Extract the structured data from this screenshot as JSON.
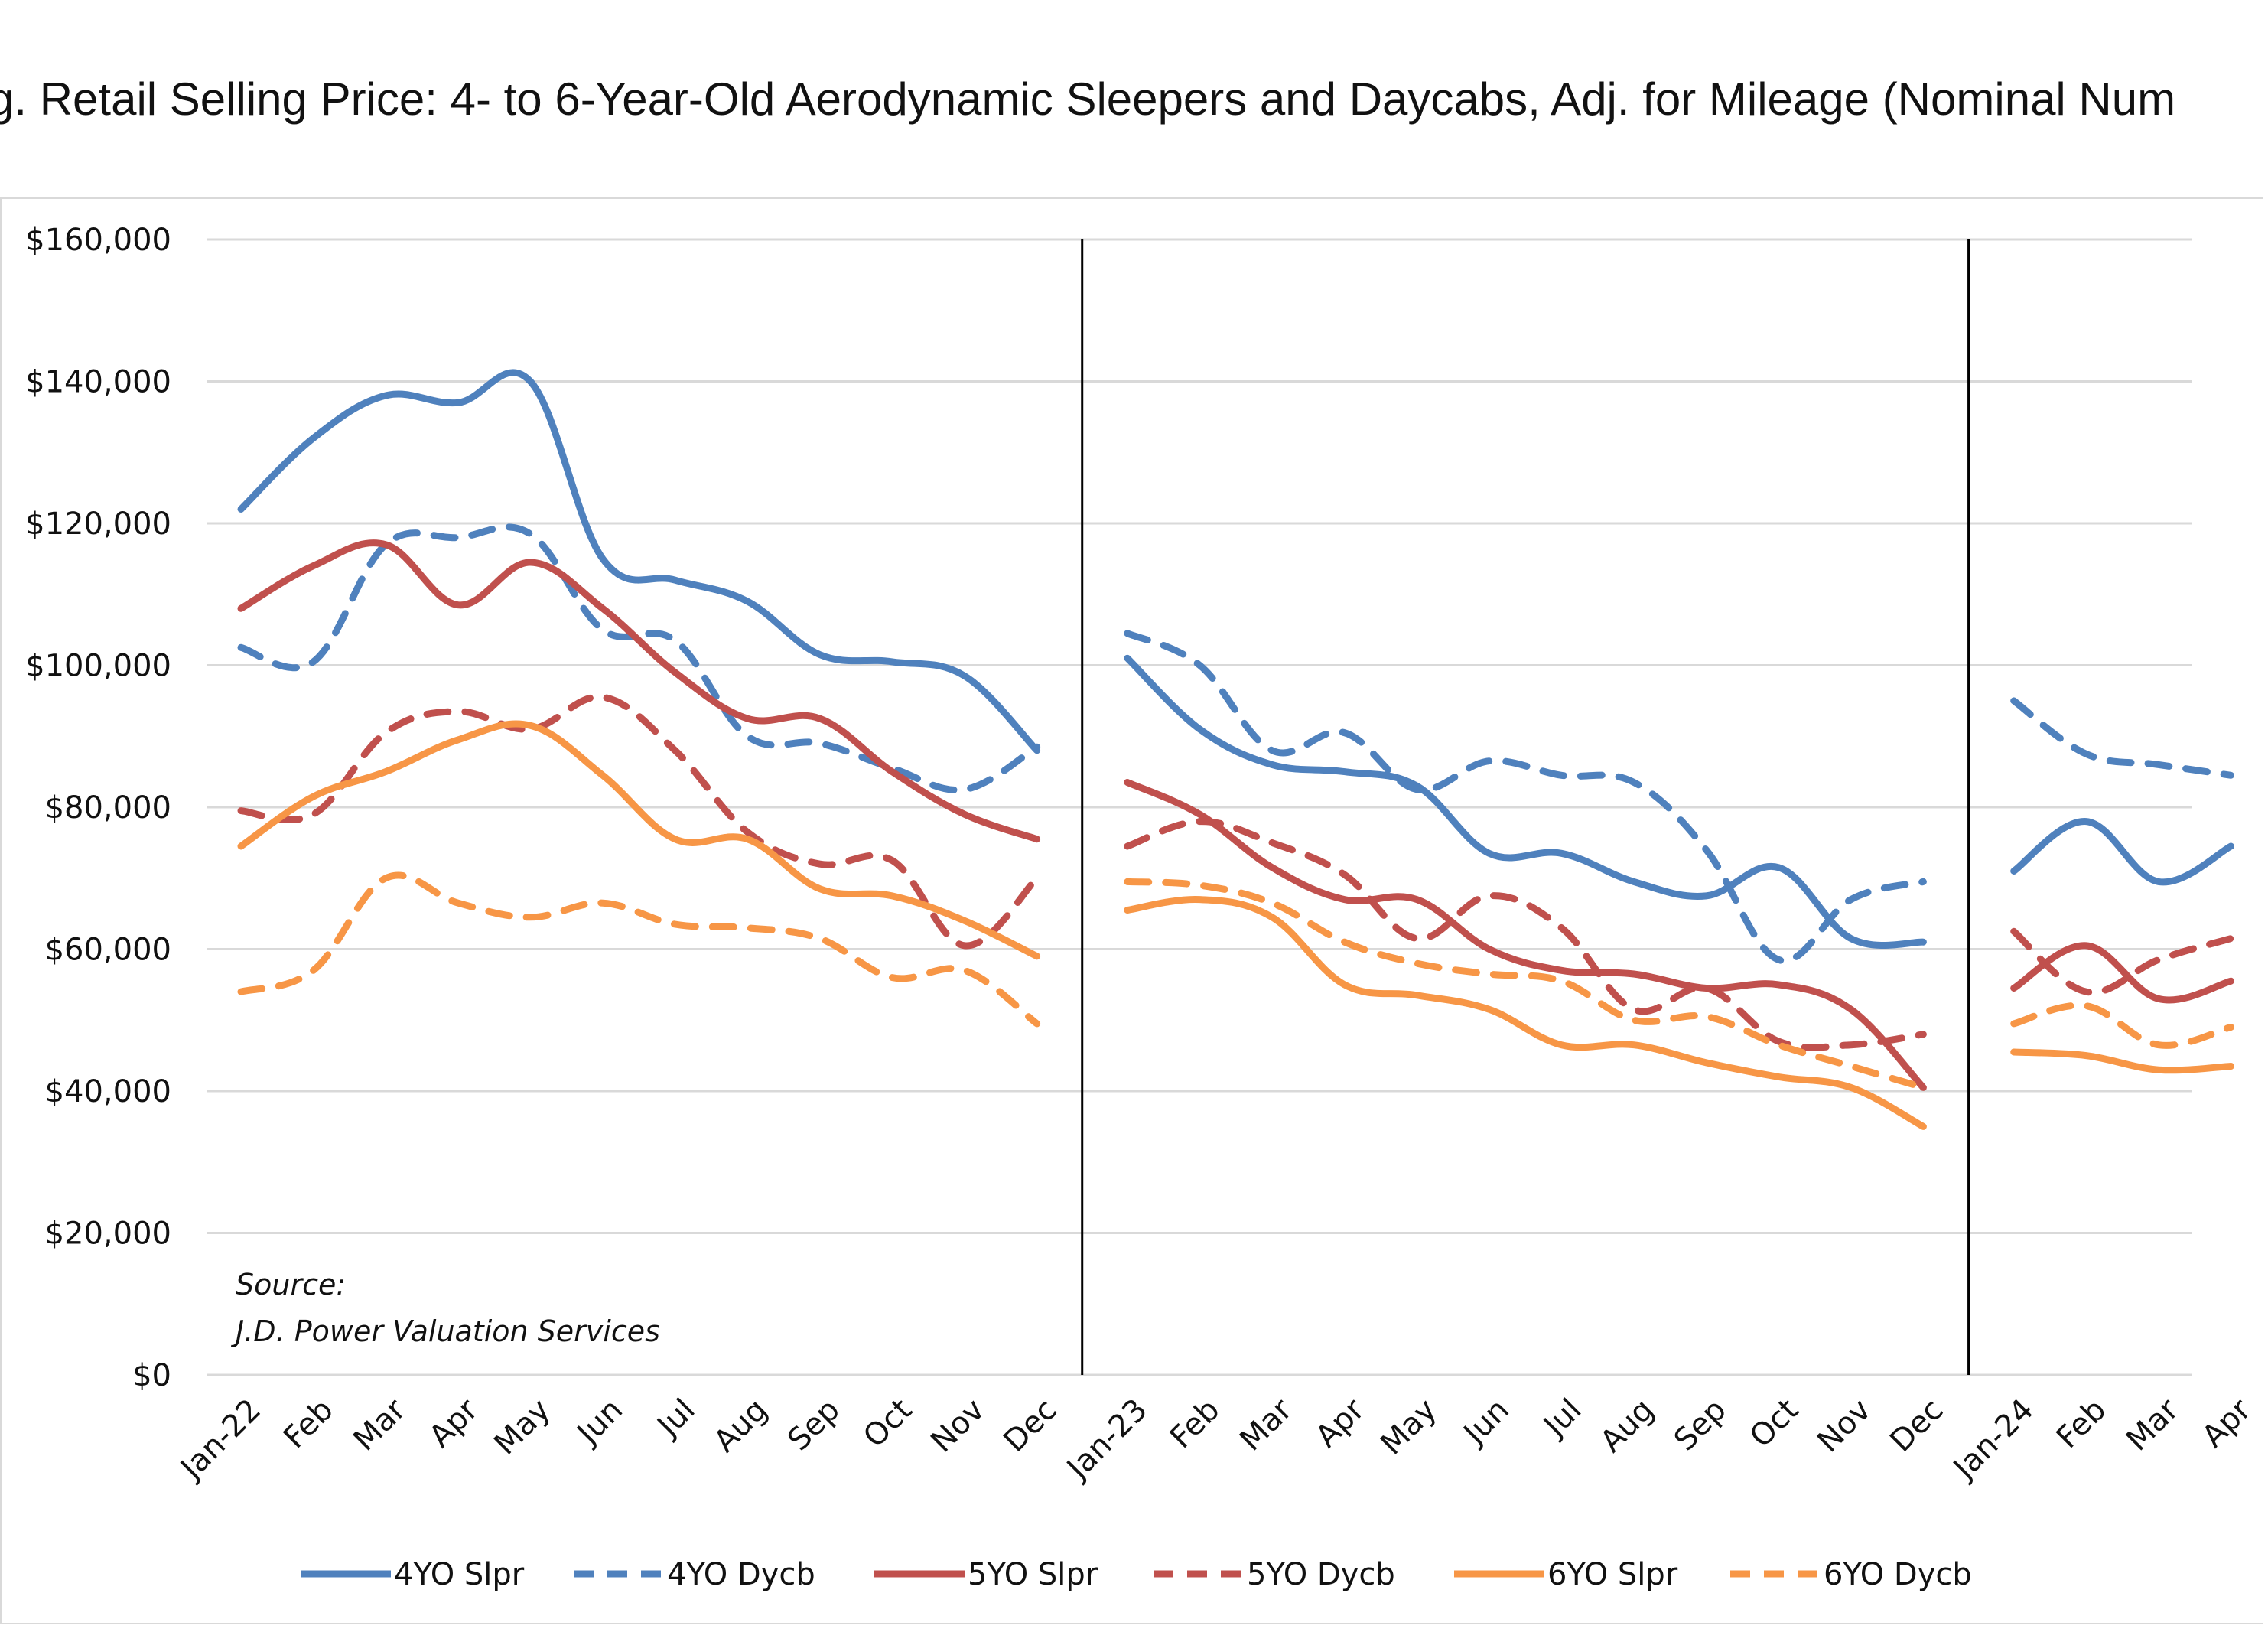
{
  "chart_data": {
    "type": "line",
    "title": "g. Retail Selling Price: 4- to 6-Year-Old Aerodynamic Sleepers and Daycabs, Adj. for Mileage (Nominal Num",
    "xlabel": "",
    "ylabel": "",
    "ylim": [
      0,
      160000
    ],
    "y_ticks": [
      {
        "value": 0,
        "label": "$0"
      },
      {
        "value": 20000,
        "label": "$20,000"
      },
      {
        "value": 40000,
        "label": "$40,000"
      },
      {
        "value": 60000,
        "label": "$60,000"
      },
      {
        "value": 80000,
        "label": "$80,000"
      },
      {
        "value": 100000,
        "label": "$100,000"
      },
      {
        "value": 120000,
        "label": "$120,000"
      },
      {
        "value": 140000,
        "label": "$140,000"
      },
      {
        "value": 160000,
        "label": "$160,000"
      }
    ],
    "grid": true,
    "legend_position": "bottom",
    "year_separators_after": [
      "Dec",
      "Dec"
    ],
    "segments": [
      {
        "categories": [
          "Jan-22",
          "Feb",
          "Mar",
          "Apr",
          "May",
          "Jun",
          "Jul",
          "Aug",
          "Sep",
          "Oct",
          "Nov",
          "Dec"
        ]
      },
      {
        "categories": [
          "Jan-23",
          "Feb",
          "Mar",
          "Apr",
          "May",
          "Jun",
          "Jul",
          "Aug",
          "Sep",
          "Oct",
          "Nov",
          "Dec"
        ]
      },
      {
        "categories": [
          "Jan-24",
          "Feb",
          "Mar",
          "Apr"
        ]
      }
    ],
    "series": [
      {
        "name": "4YO Slpr",
        "color": "#4f81bd",
        "dash": "solid",
        "segments": [
          [
            122000,
            132000,
            138000,
            137000,
            140000,
            115000,
            112000,
            109000,
            101500,
            100500,
            98500,
            88000
          ],
          [
            101000,
            91000,
            86000,
            85000,
            83000,
            73500,
            73500,
            69500,
            67500,
            71500,
            61500,
            61000
          ],
          [
            71000,
            78000,
            69500,
            74500
          ]
        ]
      },
      {
        "name": "4YO Dycb",
        "color": "#4f81bd",
        "dash": "dashed",
        "segments": [
          [
            102500,
            100500,
            117000,
            118000,
            118500,
            105000,
            103500,
            90000,
            89000,
            85500,
            82500,
            88500
          ],
          [
            104500,
            100000,
            88000,
            90500,
            82500,
            86500,
            84500,
            83500,
            74000,
            58500,
            67000,
            69500
          ],
          [
            95000,
            87500,
            86000,
            84500
          ]
        ]
      },
      {
        "name": "5YO Slpr",
        "color": "#c0504d",
        "dash": "solid",
        "segments": [
          [
            108000,
            114000,
            117000,
            108500,
            114500,
            108000,
            99000,
            92500,
            92500,
            85000,
            79000,
            75500
          ],
          [
            83500,
            79000,
            71500,
            67000,
            67000,
            60000,
            57000,
            56500,
            54500,
            55000,
            51500,
            40500
          ],
          [
            54500,
            60500,
            53000,
            55500
          ]
        ]
      },
      {
        "name": "5YO Dycb",
        "color": "#c0504d",
        "dash": "dashed",
        "segments": [
          [
            79500,
            79000,
            90500,
            93500,
            91000,
            95500,
            88000,
            76500,
            72000,
            72500,
            60500,
            70000
          ],
          [
            74500,
            78000,
            75000,
            70500,
            61500,
            67500,
            63000,
            51500,
            54500,
            47000,
            46500,
            48000
          ],
          [
            62500,
            54000,
            58500,
            61500
          ]
        ]
      },
      {
        "name": "6YO Slpr",
        "color": "#f79646",
        "dash": "solid",
        "segments": [
          [
            74500,
            81500,
            85000,
            89500,
            91500,
            84500,
            75500,
            75500,
            68500,
            67500,
            64000,
            59000
          ],
          [
            65500,
            67000,
            64500,
            55000,
            53500,
            51500,
            46500,
            46500,
            44000,
            42000,
            40500,
            35000
          ],
          [
            45500,
            45000,
            43000,
            43500
          ]
        ]
      },
      {
        "name": "6YO Dycb",
        "color": "#f79646",
        "dash": "dashed",
        "segments": [
          [
            54000,
            57000,
            70000,
            66500,
            64500,
            66500,
            63500,
            63000,
            61500,
            56000,
            57000,
            49500
          ],
          [
            69500,
            69000,
            66500,
            61000,
            58000,
            56500,
            55500,
            50000,
            50500,
            46500,
            43500,
            40500
          ],
          [
            49500,
            52000,
            46500,
            49000
          ]
        ]
      }
    ],
    "annotations": [
      "Source:",
      "J.D. Power Valuation Services"
    ]
  }
}
